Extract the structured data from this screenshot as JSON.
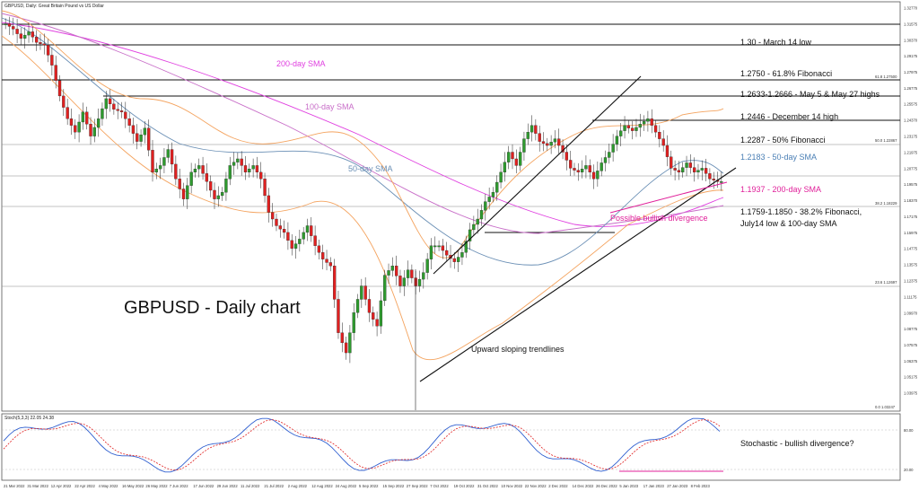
{
  "header": "GBPUSD, Daily: Great Britain Pound vs US Dollar",
  "stoch_header": "Stoch(5,3,3) 22.05 24.38",
  "big_title": "GBPUSD - Daily chart",
  "level_labels": [
    "1.30 - March 14 low",
    "1.2750 - 61.8% Fibonacci",
    "1.2633-1.2666 - May 5 & May 27 highs",
    "1.2446 - December 14 high",
    "1.2287 - 50% Fibonacci",
    "1.2183 - 50-day SMA",
    "1.1937 - 200-day SMA",
    "1.1759-1.1850 - 38.2% Fibonacci,",
    "July14 low & 100-day SMA",
    "Stochastic - bullish divergence?"
  ],
  "annotations": {
    "sma200": "200-day SMA",
    "sma100": "100-day SMA",
    "sma50": "50-day SMA",
    "divergence": "Possible bullish divergence",
    "trendlines": "Upward sloping trendlines"
  },
  "fib_labels": [
    "61.8 1.27500",
    "50.0 1.22867",
    "38.2 1.18229",
    "23.6 1.12697",
    "0.0 1.03247"
  ],
  "colors": {
    "candle_up": "#2e9a2e",
    "candle_down": "#e02020",
    "bollinger": "#f4a460",
    "sma200": "#e040e0",
    "sma100": "#c86ec8",
    "sma50": "#6a8fb5",
    "stoch_main": "#2f5fd0",
    "stoch_signal": "#e02020",
    "label_pink": "#e0209a",
    "label_blue": "#4a7fb5"
  },
  "chart_data": {
    "type": "candlestick",
    "symbol": "GBPUSD",
    "timeframe": "Daily",
    "y_ticks": [
      "1.32770",
      "1.31575",
      "1.30370",
      "1.29175",
      "1.27975",
      "1.26775",
      "1.25575",
      "1.24370",
      "1.23175",
      "1.21975",
      "1.20775",
      "1.19575",
      "1.18370",
      "1.17175",
      "1.15975",
      "1.14775",
      "1.13575",
      "1.12375",
      "1.11175",
      "1.09970",
      "1.08775",
      "1.07575",
      "1.06375",
      "1.05175",
      "1.03975"
    ],
    "x_ticks": [
      "21 Mar 2022",
      "31 Mar 2022",
      "12 Apr 2022",
      "22 Apr 2022",
      "4 May 2022",
      "16 May 2022",
      "26 May 2022",
      "7 Jun 2022",
      "17 Jun 2022",
      "29 Jun 2022",
      "11 Jul 2022",
      "21 Jul 2022",
      "2 Aug 2022",
      "12 Aug 2022",
      "24 Aug 2022",
      "5 Sep 2022",
      "15 Sep 2022",
      "27 Sep 2022",
      "7 Oct 2022",
      "19 Oct 2022",
      "31 Oct 2022",
      "10 Nov 2022",
      "22 Nov 2022",
      "2 Dec 2022",
      "14 Dec 2022",
      "26 Dec 2022",
      "5 Jan 2023",
      "17 Jan 2023",
      "27 Jan 2023",
      "8 Feb 2023"
    ],
    "levels": [
      {
        "price": 1.3,
        "label": "1.30 - March 14 low"
      },
      {
        "price": 1.275,
        "label": "1.2750 - 61.8% Fibonacci"
      },
      {
        "price": 1.2666,
        "label": "1.2633-1.2666 - May 5 & May 27 highs"
      },
      {
        "price": 1.2446,
        "label": "1.2446 - December 14 high"
      },
      {
        "price": 1.2287,
        "label": "1.2287 - 50% Fibonacci"
      },
      {
        "price": 1.2183,
        "label": "1.2183 - 50-day SMA"
      },
      {
        "price": 1.1937,
        "label": "1.1937 - 200-day SMA"
      },
      {
        "price": 1.1759,
        "label": "1.1759-1.1850 - 38.2% Fibonacci, July14 low & 100-day SMA"
      }
    ],
    "close_path": [
      1.316,
      1.312,
      1.305,
      1.31,
      1.302,
      1.3,
      1.285,
      1.262,
      1.245,
      1.235,
      1.25,
      1.232,
      1.245,
      1.26,
      1.252,
      1.25,
      1.24,
      1.228,
      1.238,
      1.205,
      1.21,
      1.222,
      1.2,
      1.185,
      1.205,
      1.21,
      1.198,
      1.185,
      1.19,
      1.21,
      1.215,
      1.205,
      1.21,
      1.2,
      1.175,
      1.165,
      1.16,
      1.148,
      1.155,
      1.165,
      1.15,
      1.14,
      1.135,
      1.085,
      1.07,
      1.1,
      1.12,
      1.1,
      1.09,
      1.128,
      1.135,
      1.12,
      1.132,
      1.12,
      1.13,
      1.15,
      1.15,
      1.143,
      1.138,
      1.145,
      1.162,
      1.17,
      1.183,
      1.19,
      1.205,
      1.22,
      1.21,
      1.23,
      1.24,
      1.228,
      1.225,
      1.23,
      1.22,
      1.208,
      1.205,
      1.21,
      1.2,
      1.212,
      1.22,
      1.232,
      1.24,
      1.236,
      1.241,
      1.245,
      1.235,
      1.225,
      1.208,
      1.205,
      1.212,
      1.205,
      1.208,
      1.2,
      1.198
    ],
    "stochastic": {
      "name": "Stoch(5,3,3)",
      "main": 22.05,
      "signal": 24.38,
      "y_ticks": [
        "80.00",
        "20.00"
      ]
    }
  }
}
